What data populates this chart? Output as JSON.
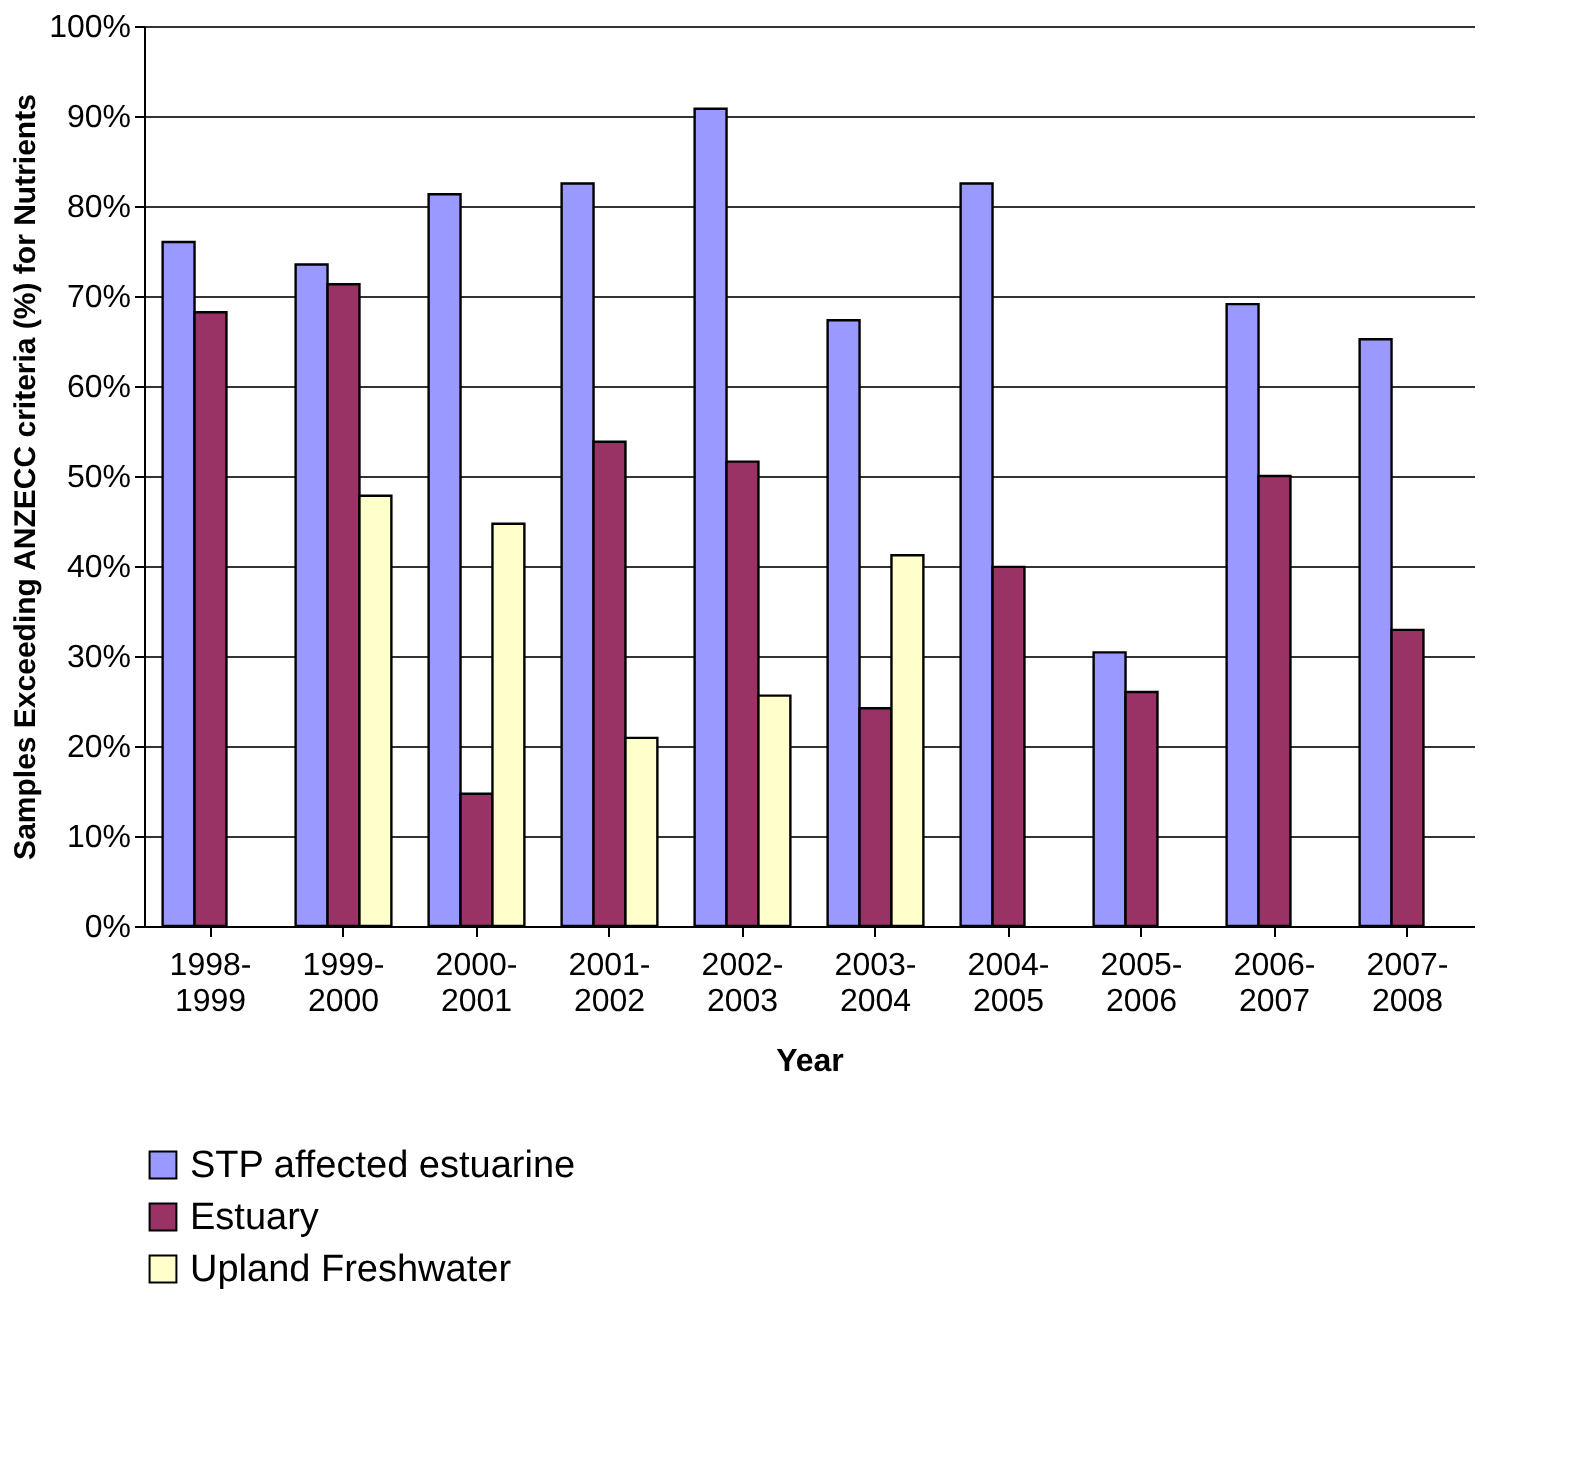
{
  "chart_data": {
    "type": "bar",
    "xlabel": "Year",
    "ylabel": "Samples Exceeding ANZECC criteria (%) for Nutrients",
    "categories": [
      "1998-1999",
      "1999-2000",
      "2000-2001",
      "2001-2002",
      "2002-2003",
      "2003-2004",
      "2004-2005",
      "2005-2006",
      "2006-2007",
      "2007-2008"
    ],
    "series": [
      {
        "name": "STP affected estuarine",
        "color": "#9999ff",
        "values": [
          76.0,
          73.5,
          81.3,
          82.5,
          90.8,
          67.3,
          82.5,
          30.4,
          69.1,
          65.2
        ]
      },
      {
        "name": "Estuary",
        "color": "#993366",
        "values": [
          68.2,
          71.3,
          14.7,
          53.8,
          51.6,
          24.2,
          39.9,
          26.0,
          50.0,
          32.9
        ]
      },
      {
        "name": "Upland Freshwater",
        "color": "#ffffcc",
        "values": [
          null,
          47.8,
          44.7,
          20.9,
          25.6,
          41.2,
          null,
          null,
          null,
          null
        ]
      }
    ],
    "ylim": [
      0,
      100
    ],
    "yticks": [
      {
        "value": 0,
        "label": "0%"
      },
      {
        "value": 10,
        "label": "10%"
      },
      {
        "value": 20,
        "label": "20%"
      },
      {
        "value": 30,
        "label": "30%"
      },
      {
        "value": 40,
        "label": "40%"
      },
      {
        "value": 50,
        "label": "50%"
      },
      {
        "value": 60,
        "label": "60%"
      },
      {
        "value": 70,
        "label": "70%"
      },
      {
        "value": 80,
        "label": "80%"
      },
      {
        "value": 90,
        "label": "90%"
      },
      {
        "value": 100,
        "label": "100%"
      }
    ],
    "grid": "y",
    "legend": "bottom"
  }
}
